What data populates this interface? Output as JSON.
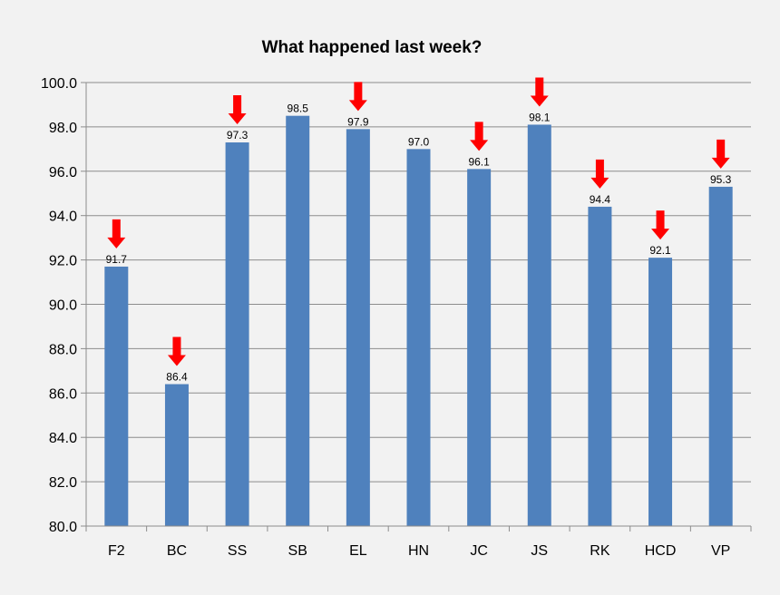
{
  "chart_data": {
    "type": "bar",
    "title": "What happened last week?",
    "xlabel": "",
    "ylabel": "",
    "categories": [
      "F2",
      "BC",
      "SS",
      "SB",
      "EL",
      "HN",
      "JC",
      "JS",
      "RK",
      "HCD",
      "VP"
    ],
    "values": [
      91.7,
      86.4,
      97.3,
      98.5,
      97.9,
      97.0,
      96.1,
      98.1,
      94.4,
      92.1,
      95.3
    ],
    "value_labels": [
      "91.7",
      "86.4",
      "97.3",
      "98.5",
      "97.9",
      "97.0",
      "96.1",
      "98.1",
      "94.4",
      "92.1",
      "95.3"
    ],
    "down_arrows": [
      true,
      true,
      true,
      false,
      true,
      false,
      true,
      true,
      true,
      true,
      true
    ],
    "ylim": [
      80,
      100
    ],
    "yticks": [
      "80.0",
      "82.0",
      "84.0",
      "86.0",
      "88.0",
      "90.0",
      "92.0",
      "94.0",
      "96.0",
      "98.0",
      "100.0"
    ],
    "grid": true,
    "legend": "none",
    "colors": {
      "bar": "#4f81bd",
      "arrow": "#ff0000",
      "background": "#f2f2f2",
      "grid": "#8c8c8c"
    }
  }
}
